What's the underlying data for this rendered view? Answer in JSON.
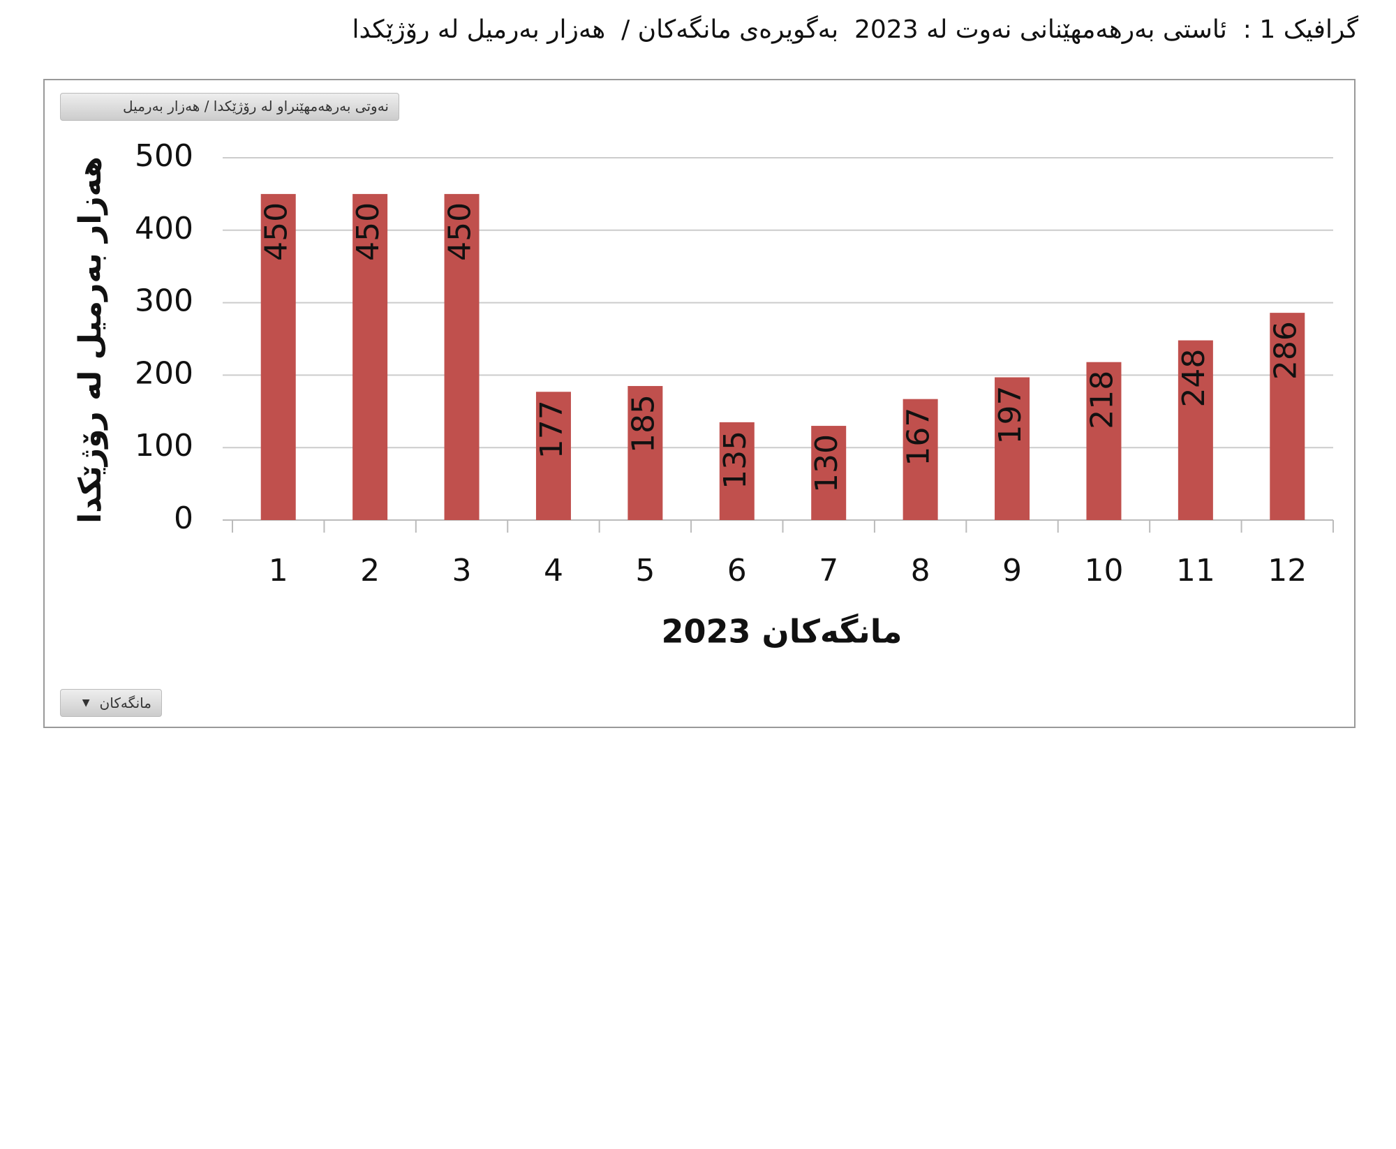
{
  "chart_data": {
    "type": "bar",
    "title": "گرافیک 1 :  ئاستی بەرهەمهێنانی نەوت لە 2023  بەگویرەی مانگەکان /  هەزار بەرمیل لە رۆژێکدا",
    "legend_button": "نەوتی بەرهەمهێنراو لە رۆژێکدا / هەزار بەرمیل",
    "filter_button": "مانگەکان",
    "x_label": "مانگەکان 2023",
    "y_label": "هەزار بەرمیل لە رۆژێکدا",
    "categories": [
      "1",
      "2",
      "3",
      "4",
      "5",
      "6",
      "7",
      "8",
      "9",
      "10",
      "11",
      "12"
    ],
    "values": [
      450,
      450,
      450,
      177,
      185,
      135,
      130,
      167,
      197,
      218,
      248,
      286
    ],
    "color": "#c0504d",
    "ylim": [
      0,
      500
    ],
    "yticks": [
      0,
      100,
      200,
      300,
      400,
      500
    ],
    "grid": true
  }
}
